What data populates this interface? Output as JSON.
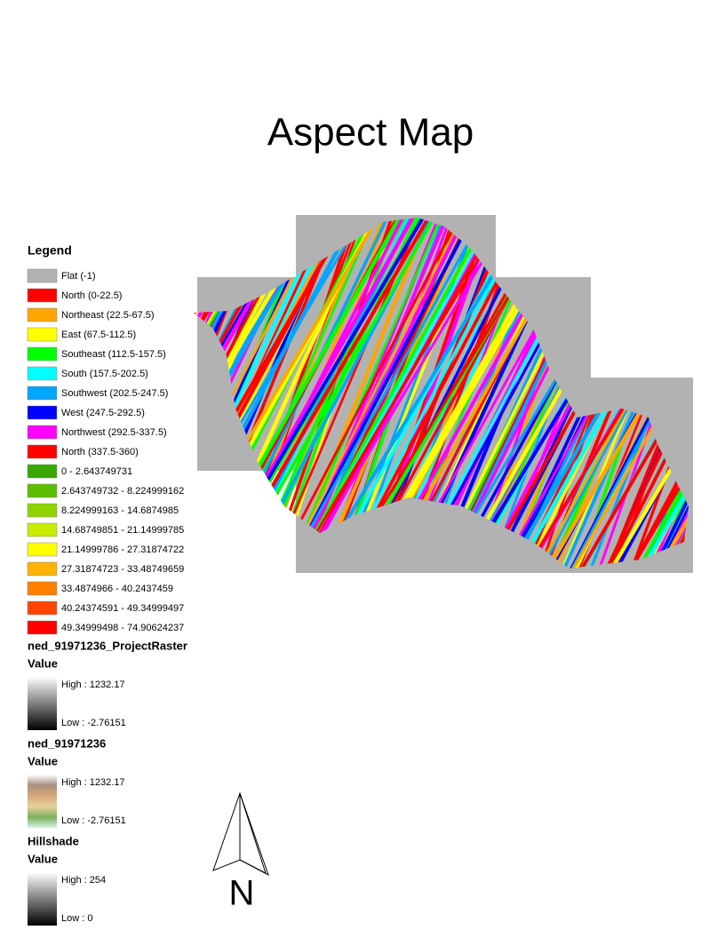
{
  "title": "Aspect Map",
  "legend": {
    "title": "Legend",
    "aspect_classes": [
      {
        "label": "Flat (-1)",
        "color": "#b2b2b2"
      },
      {
        "label": "North (0-22.5)",
        "color": "#ff0000"
      },
      {
        "label": "Northeast (22.5-67.5)",
        "color": "#ffa500"
      },
      {
        "label": "East (67.5-112.5)",
        "color": "#ffff00"
      },
      {
        "label": "Southeast (112.5-157.5)",
        "color": "#00ff00"
      },
      {
        "label": "South (157.5-202.5)",
        "color": "#00ffff"
      },
      {
        "label": "Southwest (202.5-247.5)",
        "color": "#00a5ff"
      },
      {
        "label": "West (247.5-292.5)",
        "color": "#0000ff"
      },
      {
        "label": "Northwest (292.5-337.5)",
        "color": "#ff00ff"
      },
      {
        "label": "North (337.5-360)",
        "color": "#ff0000"
      }
    ],
    "slope_classes": [
      {
        "label": "0 - 2.643749731",
        "color": "#38a800"
      },
      {
        "label": "2.643749732 - 8.224999162",
        "color": "#5cbd00"
      },
      {
        "label": "8.224999163 - 14.6874985",
        "color": "#8fd400"
      },
      {
        "label": "14.68749851 - 21.14999785",
        "color": "#c8eb00"
      },
      {
        "label": "21.14999786 - 27.31874722",
        "color": "#ffff00"
      },
      {
        "label": "27.31874723 - 33.48749659",
        "color": "#ffb300"
      },
      {
        "label": "33.4874966 - 40.2437459",
        "color": "#ff8000"
      },
      {
        "label": "40.24374591 - 49.34999497",
        "color": "#ff4400"
      },
      {
        "label": "49.34999498 - 74.90624237",
        "color": "#ff0000"
      }
    ],
    "rasters": [
      {
        "name": "ned_91971236_ProjectRaster",
        "field": "Value",
        "high": "High : 1232.17",
        "low": "Low : -2.76151",
        "ramp": [
          "#ffffff",
          "#000000"
        ]
      },
      {
        "name": "ned_91971236",
        "field": "Value",
        "high": "High : 1232.17",
        "low": "Low : -2.76151",
        "ramp": [
          "#ffffff",
          "#a88f80",
          "#d9a77a",
          "#e6d19c",
          "#7dad5a",
          "#d6f5e6"
        ]
      },
      {
        "name": "Hillshade",
        "field": "Value",
        "high": "High : 254",
        "low": "Low : 0",
        "ramp": [
          "#ffffff",
          "#000000"
        ]
      }
    ]
  },
  "north_arrow": {
    "label": "N"
  }
}
